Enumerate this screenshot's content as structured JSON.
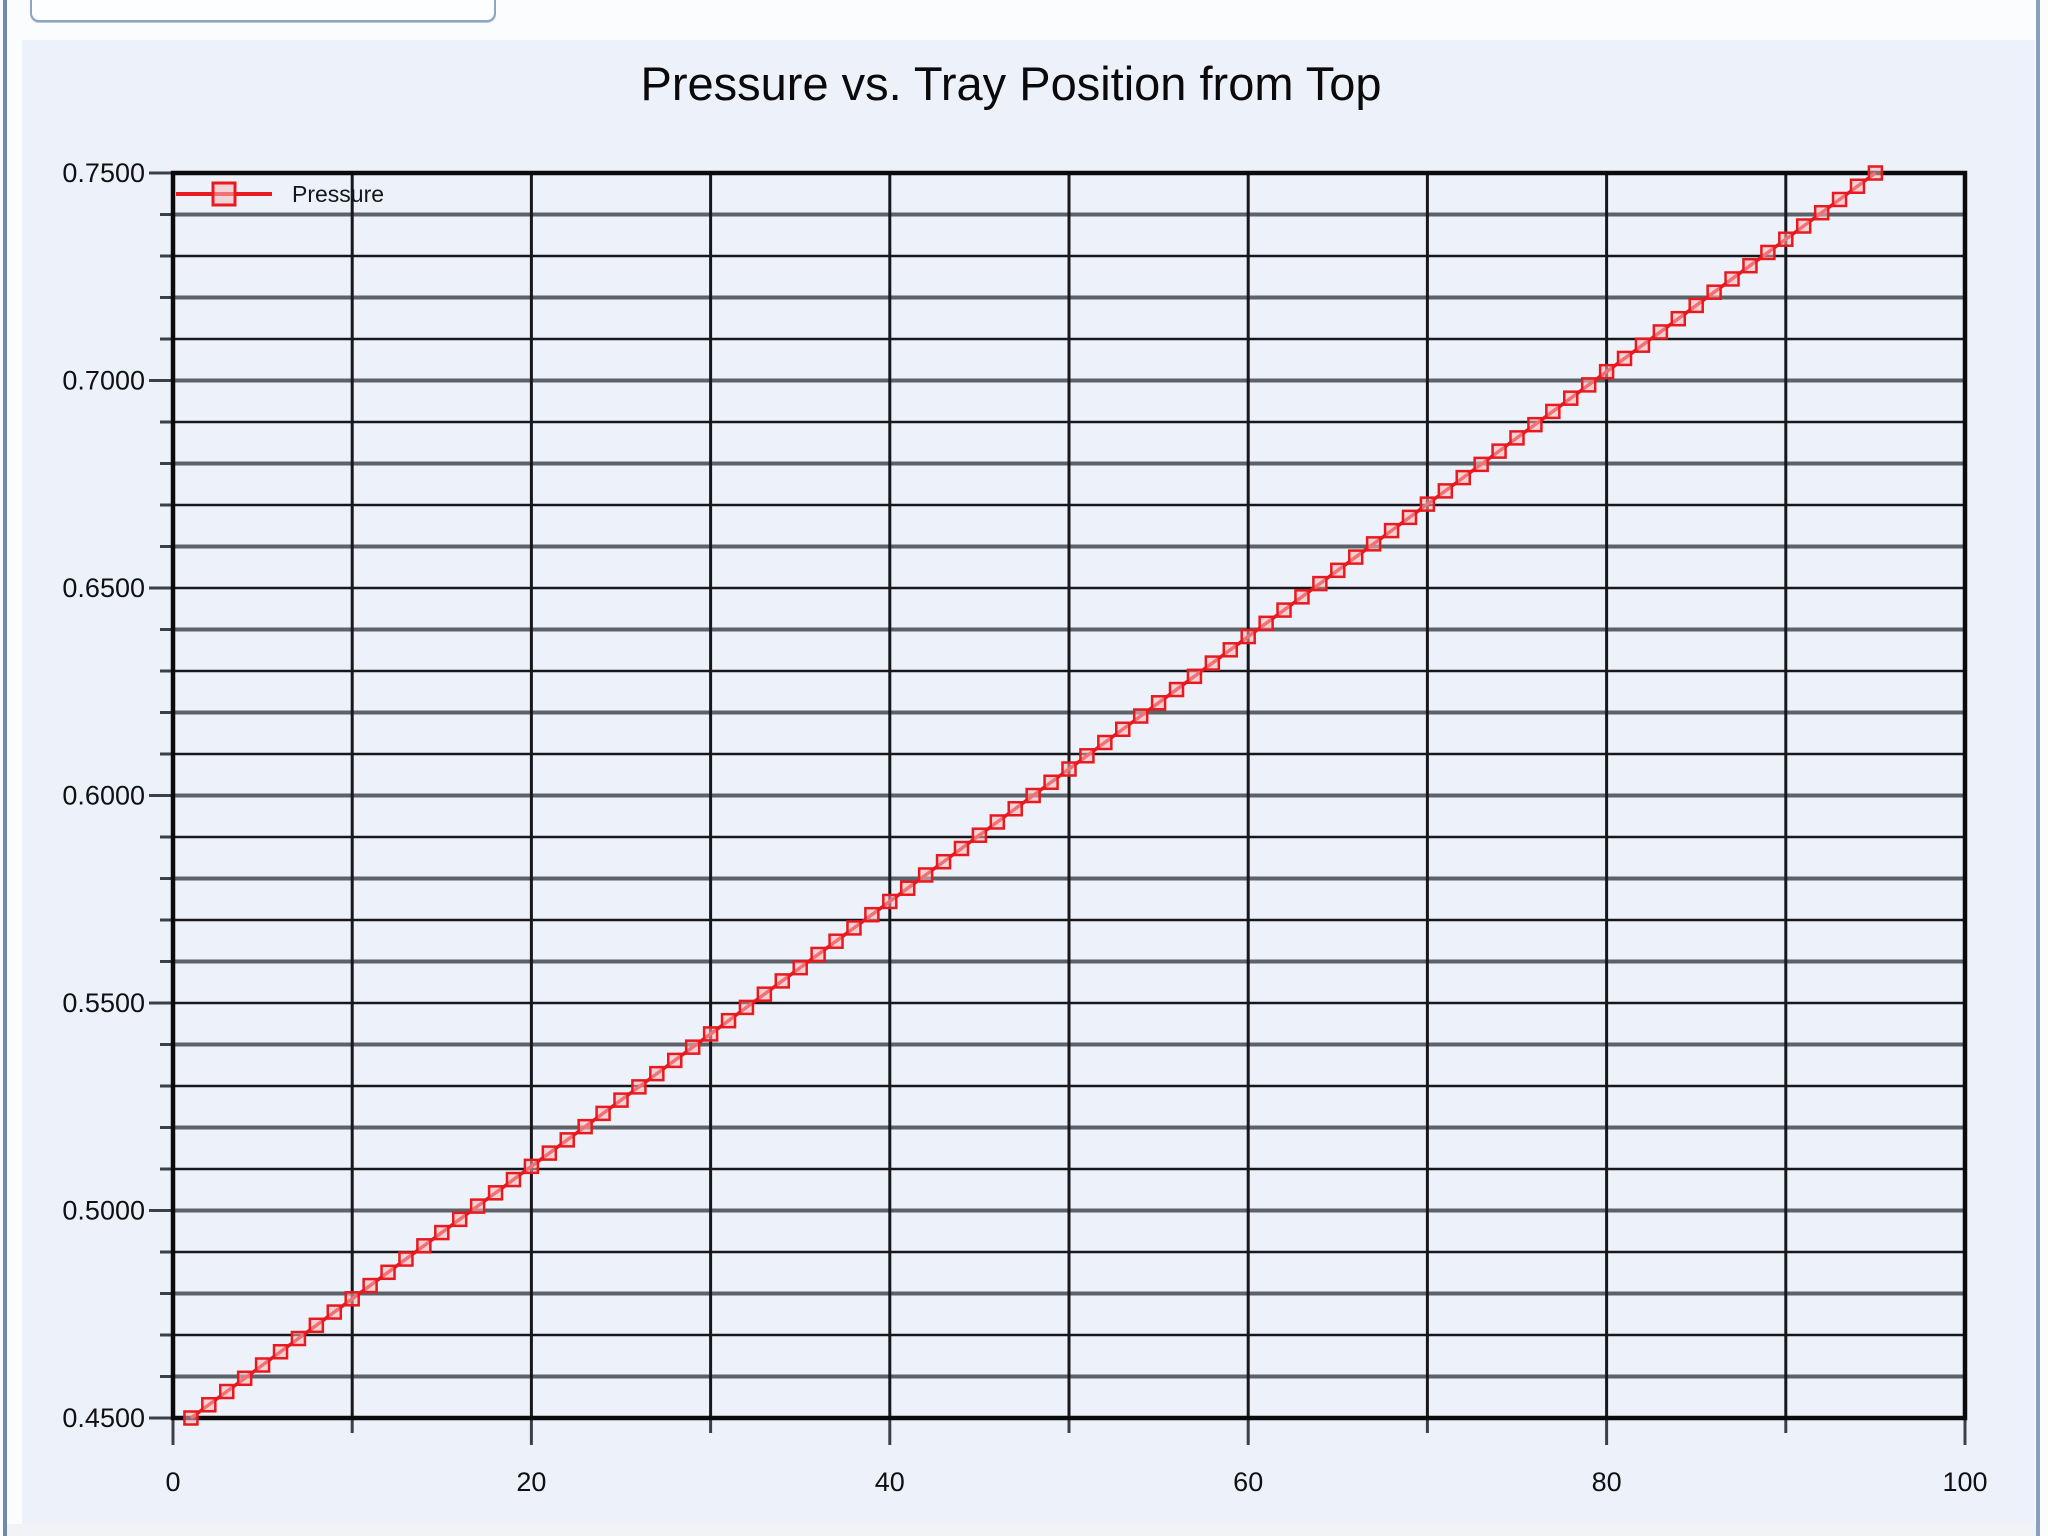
{
  "window": {
    "top_tab_label": ""
  },
  "chart_data": {
    "type": "line",
    "title": "Pressure vs. Tray Position from Top",
    "xlabel": "",
    "ylabel": "",
    "xlim": [
      0,
      100
    ],
    "ylim": [
      0.45,
      0.75
    ],
    "x_ticks": [
      0,
      20,
      40,
      60,
      80,
      100
    ],
    "x_minor_tick_step": 10,
    "y_tick_labels": [
      "0.4500",
      "0.5000",
      "0.5500",
      "0.6000",
      "0.6500",
      "0.7000",
      "0.7500"
    ],
    "y_major_step": 0.05,
    "y_minor_step": 0.01,
    "grid": true,
    "legend_position": "top-left-inside",
    "colors": {
      "series": "#e8191f",
      "marker_fill": "#f9b9ba",
      "grid_minor": "#17171c",
      "grid_major_alt": "#5d6269",
      "frame": "#0b0b0d",
      "text": "#101014",
      "panel_bg": "#edf2fa",
      "window_border": "#7189ab"
    },
    "series": [
      {
        "name": "Pressure",
        "marker": "open-square",
        "x": [
          1,
          2,
          3,
          4,
          5,
          6,
          7,
          8,
          9,
          10,
          11,
          12,
          13,
          14,
          15,
          16,
          17,
          18,
          19,
          20,
          21,
          22,
          23,
          24,
          25,
          26,
          27,
          28,
          29,
          30,
          31,
          32,
          33,
          34,
          35,
          36,
          37,
          38,
          39,
          40,
          41,
          42,
          43,
          44,
          45,
          46,
          47,
          48,
          49,
          50,
          51,
          52,
          53,
          54,
          55,
          56,
          57,
          58,
          59,
          60,
          61,
          62,
          63,
          64,
          65,
          66,
          67,
          68,
          69,
          70,
          71,
          72,
          73,
          74,
          75,
          76,
          77,
          78,
          79,
          80,
          81,
          82,
          83,
          84,
          85,
          86,
          87,
          88,
          89,
          90,
          91,
          92,
          93,
          94,
          95
        ],
        "y": [
          0.45,
          0.45319,
          0.45638,
          0.45957,
          0.46277,
          0.46596,
          0.46915,
          0.47234,
          0.47553,
          0.47872,
          0.48191,
          0.48511,
          0.4883,
          0.49149,
          0.49468,
          0.49787,
          0.50106,
          0.50426,
          0.50745,
          0.51064,
          0.51383,
          0.51702,
          0.52021,
          0.5234,
          0.5266,
          0.52979,
          0.53298,
          0.53617,
          0.53936,
          0.54255,
          0.54574,
          0.54894,
          0.55213,
          0.55532,
          0.55851,
          0.5617,
          0.56489,
          0.56809,
          0.57128,
          0.57447,
          0.57766,
          0.58085,
          0.58404,
          0.58723,
          0.59043,
          0.59362,
          0.59681,
          0.6,
          0.60319,
          0.60638,
          0.60957,
          0.61277,
          0.61596,
          0.61915,
          0.62234,
          0.62553,
          0.62872,
          0.63191,
          0.63511,
          0.6383,
          0.64149,
          0.64468,
          0.64787,
          0.65106,
          0.65426,
          0.65745,
          0.66064,
          0.66383,
          0.66702,
          0.67021,
          0.6734,
          0.6766,
          0.67979,
          0.68298,
          0.68617,
          0.68936,
          0.69255,
          0.69574,
          0.69894,
          0.70213,
          0.70532,
          0.70851,
          0.7117,
          0.71489,
          0.71809,
          0.72128,
          0.72447,
          0.72766,
          0.73085,
          0.73404,
          0.73723,
          0.74043,
          0.74362,
          0.74681,
          0.75
        ]
      }
    ]
  }
}
